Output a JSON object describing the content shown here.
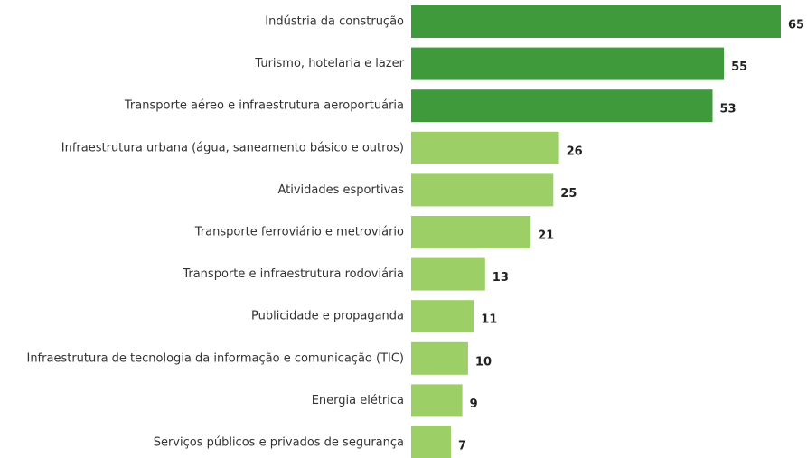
{
  "chart_data": {
    "type": "bar",
    "orientation": "horizontal",
    "categories": [
      "Indústria da construção",
      "Turismo, hotelaria e lazer",
      "Transporte aéreo e infraestrutura aeroportuária",
      "Infraestrutura urbana (água, saneamento básico e outros)",
      "Atividades esportivas",
      "Transporte ferroviário e metroviário",
      "Transporte e infraestrutura rodoviária",
      "Publicidade e propaganda",
      "Infraestrutura de tecnologia da informação e comunicação (TIC)",
      "Energia elétrica",
      "Serviços públicos e privados de segurança"
    ],
    "values": [
      65,
      55,
      53,
      26,
      25,
      21,
      13,
      11,
      10,
      9,
      7
    ],
    "colors": [
      "#3e9a3b",
      "#3e9a3b",
      "#3e9a3b",
      "#9ccf65",
      "#9ccf65",
      "#9ccf65",
      "#9ccf65",
      "#9ccf65",
      "#9ccf65",
      "#9ccf65",
      "#9ccf65"
    ]
  }
}
